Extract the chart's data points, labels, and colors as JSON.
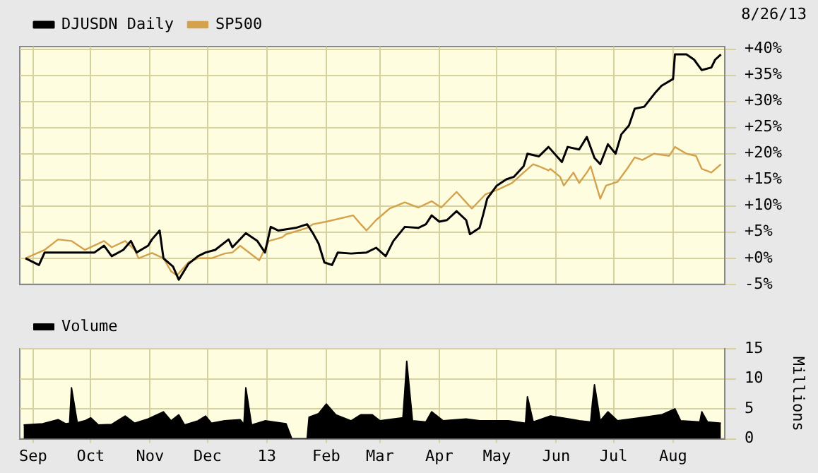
{
  "chart_data": [
    {
      "type": "line",
      "annotations": [
        "8/26/13"
      ],
      "legend": "top left",
      "grid": true,
      "tick_labels": "y",
      "marker": "none",
      "line_style": "solid",
      "xlim": [
        "2012-08-25",
        "2013-08-28"
      ],
      "xticks": [
        {
          "value": "2012-09-01",
          "label": null
        },
        {
          "value": "2012-10-01",
          "label": null
        },
        {
          "value": "2012-11-01",
          "label": null
        },
        {
          "value": "2012-12-01",
          "label": null
        },
        {
          "value": "2013-01-01",
          "label": null
        },
        {
          "value": "2013-02-01",
          "label": null
        },
        {
          "value": "2013-03-01",
          "label": null
        },
        {
          "value": "2013-04-01",
          "label": null
        },
        {
          "value": "2013-05-01",
          "label": null
        },
        {
          "value": "2013-06-01",
          "label": null
        },
        {
          "value": "2013-07-01",
          "label": null
        },
        {
          "value": "2013-08-01",
          "label": null
        }
      ],
      "ylim": [
        -5,
        40.5
      ],
      "yticks": [
        {
          "value": -5,
          "label": "-5%"
        },
        {
          "value": 0,
          "label": "+0%"
        },
        {
          "value": 5,
          "label": "+5%"
        },
        {
          "value": 10,
          "label": "+10%"
        },
        {
          "value": 15,
          "label": "+15%"
        },
        {
          "value": 20,
          "label": "+20%"
        },
        {
          "value": 25,
          "label": "+25%"
        },
        {
          "value": 30,
          "label": "+30%"
        },
        {
          "value": 35,
          "label": "+35%"
        },
        {
          "value": 40,
          "label": "+40%"
        }
      ],
      "series": [
        {
          "name": "DJUSDN Daily",
          "color": "#000000",
          "x": [
            "2012-08-28",
            "2012-09-04",
            "2012-09-07",
            "2012-09-14",
            "2012-09-21",
            "2012-10-03",
            "2012-10-08",
            "2012-10-12",
            "2012-10-18",
            "2012-10-22",
            "2012-10-25",
            "2012-10-31",
            "2012-11-02",
            "2012-11-06",
            "2012-11-08",
            "2012-11-13",
            "2012-11-16",
            "2012-11-21",
            "2012-11-26",
            "2012-11-30",
            "2012-12-05",
            "2012-12-12",
            "2012-12-14",
            "2012-12-21",
            "2012-12-27",
            "2012-12-31",
            "2013-01-03",
            "2013-01-07",
            "2013-01-16",
            "2013-01-22",
            "2013-01-25",
            "2013-01-28",
            "2013-01-31",
            "2013-02-04",
            "2013-02-07",
            "2013-02-14",
            "2013-02-22",
            "2013-02-27",
            "2013-03-04",
            "2013-03-08",
            "2013-03-14",
            "2013-03-21",
            "2013-03-25",
            "2013-03-28",
            "2013-04-01",
            "2013-04-05",
            "2013-04-10",
            "2013-04-15",
            "2013-04-17",
            "2013-04-22",
            "2013-04-24",
            "2013-04-26",
            "2013-05-01",
            "2013-05-06",
            "2013-05-10",
            "2013-05-15",
            "2013-05-17",
            "2013-05-23",
            "2013-05-28",
            "2013-06-04",
            "2013-06-07",
            "2013-06-13",
            "2013-06-17",
            "2013-06-21",
            "2013-06-24",
            "2013-06-28",
            "2013-07-02",
            "2013-07-05",
            "2013-07-09",
            "2013-07-12",
            "2013-07-17",
            "2013-07-23",
            "2013-07-26",
            "2013-08-01",
            "2013-08-02",
            "2013-08-08",
            "2013-08-12",
            "2013-08-16",
            "2013-08-21",
            "2013-08-23",
            "2013-08-26"
          ],
          "values": [
            0,
            -1.3,
            1.1,
            1.1,
            1.1,
            1.1,
            2.4,
            0.4,
            1.6,
            3.3,
            1.1,
            2.4,
            3.6,
            5.3,
            0,
            -1.6,
            -4.1,
            -1.1,
            0.4,
            1.1,
            1.6,
            3.6,
            2.1,
            4.8,
            3.3,
            1.1,
            6,
            5.3,
            5.8,
            6.5,
            4.8,
            2.8,
            -0.8,
            -1.3,
            1.1,
            0.9,
            1.1,
            2,
            0.4,
            3.3,
            6,
            5.8,
            6.5,
            8.2,
            7,
            7.3,
            9,
            7.3,
            4.6,
            5.8,
            8.5,
            11.4,
            13.9,
            15.1,
            15.6,
            17.6,
            20,
            19.5,
            21.3,
            18.4,
            21.3,
            20.8,
            23.2,
            19.2,
            18,
            21.8,
            20,
            23.7,
            25.4,
            28.6,
            29,
            31.8,
            33,
            34.3,
            39,
            39,
            38,
            36,
            36.5,
            38,
            39
          ]
        },
        {
          "name": "SP500",
          "color": "#d4a24c",
          "x": [
            "2012-08-28",
            "2012-09-07",
            "2012-09-14",
            "2012-09-21",
            "2012-09-28",
            "2012-10-08",
            "2012-10-12",
            "2012-10-19",
            "2012-10-24",
            "2012-10-26",
            "2012-11-02",
            "2012-11-08",
            "2012-11-12",
            "2012-11-15",
            "2012-11-21",
            "2012-11-26",
            "2012-12-03",
            "2012-12-10",
            "2012-12-14",
            "2012-12-18",
            "2012-12-28",
            "2013-01-02",
            "2013-01-09",
            "2013-01-11",
            "2013-01-22",
            "2013-01-25",
            "2013-02-01",
            "2013-02-15",
            "2013-02-19",
            "2013-02-22",
            "2013-02-27",
            "2013-03-06",
            "2013-03-14",
            "2013-03-21",
            "2013-03-28",
            "2013-04-02",
            "2013-04-10",
            "2013-04-15",
            "2013-04-18",
            "2013-04-25",
            "2013-05-02",
            "2013-05-09",
            "2013-05-15",
            "2013-05-20",
            "2013-05-23",
            "2013-05-28",
            "2013-05-29",
            "2013-06-03",
            "2013-06-05",
            "2013-06-10",
            "2013-06-13",
            "2013-06-17",
            "2013-06-19",
            "2013-06-24",
            "2013-06-27",
            "2013-07-03",
            "2013-07-08",
            "2013-07-12",
            "2013-07-16",
            "2013-07-22",
            "2013-07-30",
            "2013-08-02",
            "2013-08-08",
            "2013-08-13",
            "2013-08-16",
            "2013-08-21",
            "2013-08-26"
          ],
          "values": [
            0,
            1.6,
            3.6,
            3.3,
            1.6,
            3.3,
            2.1,
            3.3,
            1.6,
            0,
            1,
            0,
            -2.5,
            -3.3,
            -0.8,
            0,
            0,
            0.9,
            1.1,
            2.4,
            -0.4,
            3.3,
            4,
            4.6,
            5.8,
            6.5,
            7,
            8.2,
            6.5,
            5.3,
            7.3,
            9.5,
            10.7,
            9.7,
            10.9,
            9.7,
            12.7,
            10.7,
            9.5,
            12.2,
            13.2,
            14.4,
            16.4,
            18,
            17.6,
            16.8,
            17.1,
            15.6,
            13.9,
            16.4,
            14.4,
            16.4,
            17.6,
            11.4,
            13.9,
            14.6,
            17.1,
            19.3,
            18.8,
            20,
            19.6,
            21.3,
            20,
            19.6,
            17.1,
            16.4,
            18
          ]
        }
      ]
    },
    {
      "type": "area",
      "ylabel": "Millions",
      "legend": "top left",
      "grid": true,
      "xlim": [
        "2012-08-25",
        "2013-08-28"
      ],
      "xticks": [
        {
          "value": "2012-09-01",
          "label": "Sep"
        },
        {
          "value": "2012-10-01",
          "label": "Oct"
        },
        {
          "value": "2012-11-01",
          "label": "Nov"
        },
        {
          "value": "2012-12-01",
          "label": "Dec"
        },
        {
          "value": "2013-01-01",
          "label": "13"
        },
        {
          "value": "2013-02-01",
          "label": "Feb"
        },
        {
          "value": "2013-03-01",
          "label": "Mar"
        },
        {
          "value": "2013-04-01",
          "label": "Apr"
        },
        {
          "value": "2013-05-01",
          "label": "May"
        },
        {
          "value": "2013-06-01",
          "label": "Jun"
        },
        {
          "value": "2013-07-01",
          "label": "Jul"
        },
        {
          "value": "2013-08-01",
          "label": "Aug"
        }
      ],
      "ylim": [
        0,
        15
      ],
      "yticks": [
        0,
        5,
        10,
        15
      ],
      "series": [
        {
          "name": "Volume",
          "color": "#000000",
          "x": [
            "2012-08-27",
            "2012-09-06",
            "2012-09-14",
            "2012-09-18",
            "2012-09-20",
            "2012-09-21",
            "2012-09-24",
            "2012-09-28",
            "2012-10-01",
            "2012-10-05",
            "2012-10-12",
            "2012-10-19",
            "2012-10-24",
            "2012-10-31",
            "2012-11-08",
            "2012-11-12",
            "2012-11-16",
            "2012-11-19",
            "2012-11-26",
            "2012-11-30",
            "2012-12-03",
            "2012-12-10",
            "2012-12-18",
            "2012-12-20",
            "2012-12-21",
            "2012-12-24",
            "2012-12-31",
            "2013-01-11",
            "2013-01-14",
            "2013-01-22",
            "2013-01-23",
            "2013-01-28",
            "2013-02-01",
            "2013-02-06",
            "2013-02-14",
            "2013-02-19",
            "2013-02-25",
            "2013-03-01",
            "2013-03-13",
            "2013-03-14",
            "2013-03-15",
            "2013-03-18",
            "2013-03-25",
            "2013-03-28",
            "2013-04-03",
            "2013-04-15",
            "2013-04-22",
            "2013-05-07",
            "2013-05-16",
            "2013-05-17",
            "2013-05-20",
            "2013-05-29",
            "2013-06-10",
            "2013-06-13",
            "2013-06-19",
            "2013-06-20",
            "2013-06-21",
            "2013-06-24",
            "2013-06-28",
            "2013-07-03",
            "2013-07-15",
            "2013-07-26",
            "2013-08-02",
            "2013-08-05",
            "2013-08-15",
            "2013-08-16",
            "2013-08-19",
            "2013-08-26"
          ],
          "values": [
            2.3,
            2.5,
            3.2,
            2.5,
            2.6,
            8.5,
            2.7,
            3,
            3.5,
            2.3,
            2.4,
            3.8,
            2.6,
            3.3,
            4.5,
            3,
            4,
            2.3,
            3,
            3.8,
            2.6,
            3,
            3.2,
            2.4,
            8.5,
            2.3,
            3,
            2.5,
            0,
            0,
            3.6,
            4.2,
            5.8,
            4,
            3,
            4,
            4,
            3,
            3.5,
            8,
            12.9,
            3,
            2.8,
            4.5,
            3,
            3.3,
            3,
            3,
            2.6,
            7,
            2.8,
            3.8,
            3.2,
            3,
            2.8,
            6.2,
            9,
            3,
            4.5,
            3,
            3.5,
            4,
            5,
            3,
            2.8,
            4.5,
            2.8,
            2.6
          ]
        }
      ]
    }
  ]
}
